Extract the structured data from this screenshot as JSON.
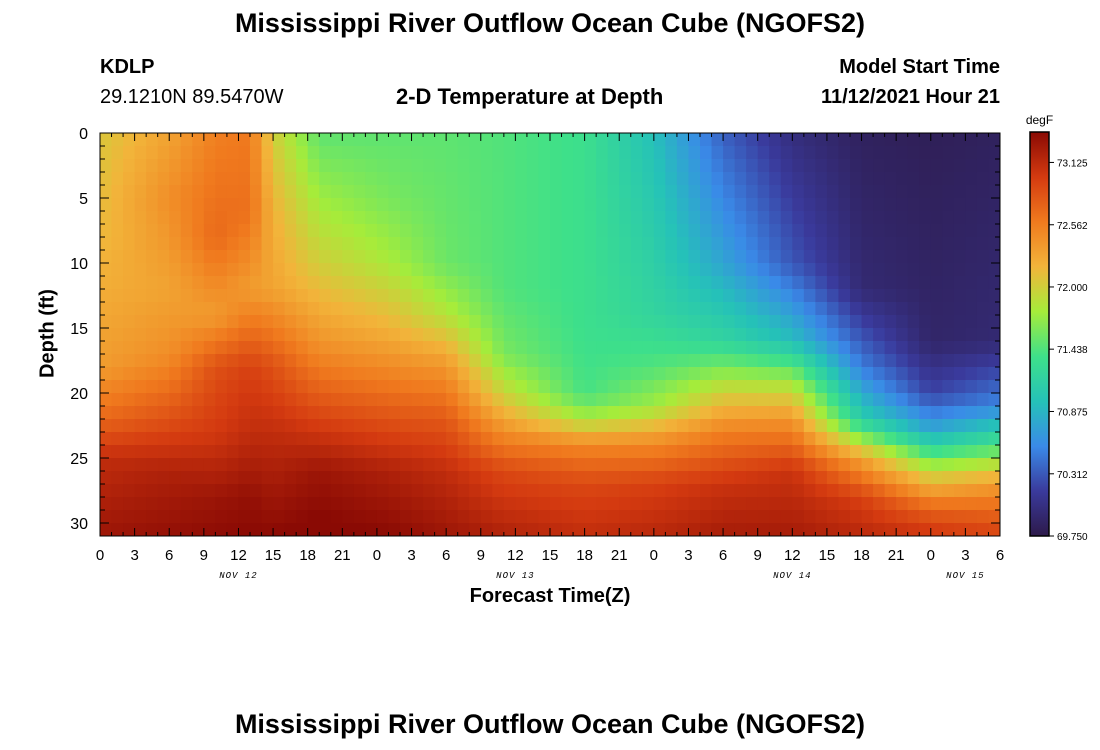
{
  "page": {
    "title": "Mississippi River Outflow Ocean Cube (NGOFS2)",
    "title_repeat": "Mississippi River Outflow Ocean Cube (NGOFS2)",
    "station": "KDLP",
    "coords": "29.1210N  89.5470W",
    "subtitle": "2-D Temperature at Depth",
    "model_start_label": "Model Start Time",
    "model_start_value": "11/12/2021 Hour 21"
  },
  "chart_data": {
    "type": "heatmap",
    "title": "2-D Temperature at Depth",
    "xlabel": "Forecast Time(Z)",
    "ylabel": "Depth (ft)",
    "x_hours_start": 0,
    "x_hours_end": 78,
    "x_tick_labels": [
      "0",
      "3",
      "6",
      "9",
      "12",
      "15",
      "18",
      "21",
      "0",
      "3",
      "6",
      "9",
      "12",
      "15",
      "18",
      "21",
      "0",
      "3",
      "6",
      "9",
      "12",
      "15",
      "18",
      "21",
      "0",
      "3",
      "6"
    ],
    "date_labels": [
      {
        "label": "NOV 12",
        "hour": 12
      },
      {
        "label": "NOV 13",
        "hour": 36
      },
      {
        "label": "NOV 14",
        "hour": 60
      },
      {
        "label": "NOV 15",
        "hour": 75
      }
    ],
    "ylim": [
      0,
      31
    ],
    "y_ticks": [
      0,
      5,
      10,
      15,
      20,
      25,
      30
    ],
    "colorbar": {
      "unit": "degF",
      "min": 69.75,
      "max": 73.4,
      "ticks": [
        73.125,
        72.562,
        72.0,
        71.438,
        70.875,
        70.312,
        69.75
      ],
      "tick_labels": [
        "73.125",
        "72.562",
        "72.000",
        "71.438",
        "70.875",
        "70.312",
        "69.750"
      ],
      "colors": [
        "#2d1a4a",
        "#3a3a9c",
        "#3a8ae8",
        "#25c2b8",
        "#3ee08a",
        "#a6ec3a",
        "#f2b43a",
        "#f07a1e",
        "#d43a10",
        "#8a0a04"
      ]
    },
    "profiles": [
      {
        "hour": 0,
        "values": [
          [
            0,
            72.05
          ],
          [
            8,
            72.15
          ],
          [
            18,
            72.35
          ],
          [
            22,
            72.7
          ],
          [
            25,
            73.1
          ],
          [
            31,
            73.3
          ]
        ]
      },
      {
        "hour": 6,
        "values": [
          [
            0,
            72.3
          ],
          [
            5,
            72.45
          ],
          [
            12,
            72.3
          ],
          [
            17,
            72.45
          ],
          [
            22,
            72.85
          ],
          [
            26,
            73.2
          ],
          [
            31,
            73.35
          ]
        ]
      },
      {
        "hour": 10,
        "values": [
          [
            0,
            72.55
          ],
          [
            8,
            72.7
          ],
          [
            14,
            72.35
          ],
          [
            18,
            72.85
          ],
          [
            23,
            73.0
          ],
          [
            28,
            73.3
          ],
          [
            31,
            73.38
          ]
        ]
      },
      {
        "hour": 13,
        "values": [
          [
            0,
            72.6
          ],
          [
            6,
            72.65
          ],
          [
            12,
            72.35
          ],
          [
            18,
            72.95
          ],
          [
            23,
            73.1
          ],
          [
            28,
            73.35
          ],
          [
            31,
            73.4
          ]
        ]
      },
      {
        "hour": 15,
        "values": [
          [
            0,
            72.0
          ],
          [
            6,
            72.2
          ],
          [
            12,
            72.3
          ],
          [
            18,
            72.85
          ],
          [
            23,
            73.1
          ],
          [
            31,
            73.4
          ]
        ]
      },
      {
        "hour": 19,
        "values": [
          [
            0,
            71.5
          ],
          [
            5,
            71.75
          ],
          [
            10,
            72.0
          ],
          [
            16,
            72.4
          ],
          [
            21,
            72.85
          ],
          [
            26,
            73.3
          ],
          [
            31,
            73.45
          ]
        ]
      },
      {
        "hour": 25,
        "values": [
          [
            0,
            71.5
          ],
          [
            5,
            71.6
          ],
          [
            10,
            71.8
          ],
          [
            15,
            72.2
          ],
          [
            21,
            72.75
          ],
          [
            26,
            73.2
          ],
          [
            31,
            73.4
          ]
        ]
      },
      {
        "hour": 30,
        "values": [
          [
            0,
            71.5
          ],
          [
            10,
            71.55
          ],
          [
            14,
            71.85
          ],
          [
            18,
            72.4
          ],
          [
            22,
            72.8
          ],
          [
            26,
            73.1
          ],
          [
            31,
            73.3
          ]
        ]
      },
      {
        "hour": 35,
        "values": [
          [
            0,
            71.45
          ],
          [
            12,
            71.45
          ],
          [
            17,
            71.6
          ],
          [
            20,
            71.95
          ],
          [
            23,
            72.45
          ],
          [
            26,
            72.9
          ],
          [
            31,
            73.2
          ]
        ]
      },
      {
        "hour": 42,
        "values": [
          [
            0,
            71.35
          ],
          [
            15,
            71.35
          ],
          [
            20,
            71.4
          ],
          [
            22,
            71.8
          ],
          [
            24,
            72.5
          ],
          [
            27,
            72.9
          ],
          [
            31,
            73.1
          ]
        ]
      },
      {
        "hour": 48,
        "values": [
          [
            0,
            70.95
          ],
          [
            14,
            71.2
          ],
          [
            18,
            71.45
          ],
          [
            21,
            71.75
          ],
          [
            24,
            72.5
          ],
          [
            27,
            72.95
          ],
          [
            31,
            73.15
          ]
        ]
      },
      {
        "hour": 54,
        "values": [
          [
            0,
            70.35
          ],
          [
            10,
            70.75
          ],
          [
            16,
            71.2
          ],
          [
            19,
            71.8
          ],
          [
            23,
            72.55
          ],
          [
            27,
            73.05
          ],
          [
            31,
            73.25
          ]
        ]
      },
      {
        "hour": 60,
        "values": [
          [
            0,
            70.0
          ],
          [
            10,
            70.3
          ],
          [
            16,
            70.95
          ],
          [
            19,
            71.75
          ],
          [
            22,
            72.4
          ],
          [
            26,
            73.05
          ],
          [
            31,
            73.25
          ]
        ]
      },
      {
        "hour": 66,
        "values": [
          [
            0,
            69.85
          ],
          [
            12,
            69.95
          ],
          [
            18,
            70.5
          ],
          [
            22,
            71.1
          ],
          [
            25,
            72.3
          ],
          [
            28,
            72.95
          ],
          [
            31,
            73.15
          ]
        ]
      },
      {
        "hour": 72,
        "values": [
          [
            0,
            69.82
          ],
          [
            16,
            69.9
          ],
          [
            20,
            70.2
          ],
          [
            23,
            70.8
          ],
          [
            26,
            71.9
          ],
          [
            29,
            72.75
          ],
          [
            31,
            73.05
          ]
        ]
      },
      {
        "hour": 78,
        "values": [
          [
            0,
            69.85
          ],
          [
            16,
            69.95
          ],
          [
            21,
            70.55
          ],
          [
            24,
            71.4
          ],
          [
            27,
            72.35
          ],
          [
            29,
            72.7
          ],
          [
            31,
            72.95
          ]
        ]
      }
    ]
  }
}
